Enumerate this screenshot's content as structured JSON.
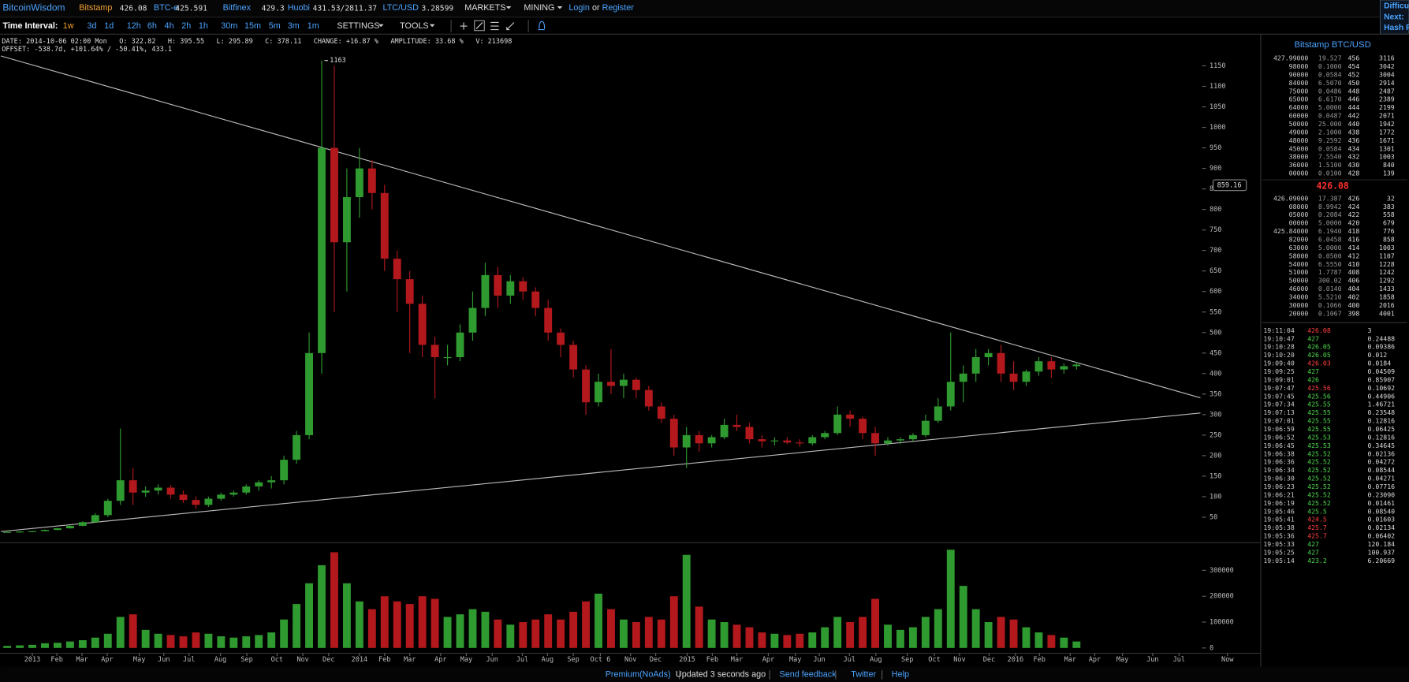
{
  "header": {
    "brand": "BitcoinWisdom",
    "tickers": [
      {
        "exchange": "Bitstamp",
        "price": "426.08"
      },
      {
        "exchange": "BTC-e",
        "price": "425.591"
      },
      {
        "exchange": "Bitfinex",
        "price": "429.3"
      },
      {
        "exchange": "Huobi",
        "price": "431.53/2811.37"
      },
      {
        "exchange": "LTC/USD",
        "price": "3.28599"
      }
    ],
    "menus": [
      "MARKETS",
      "MINING"
    ],
    "login": "Login",
    "or": "or",
    "register": "Register",
    "side_info": [
      "Difficu",
      "Next:",
      "Hash R"
    ]
  },
  "toolbar": {
    "label": "Time Interval:",
    "intervals": [
      "1w",
      "3d",
      "1d",
      "12h",
      "6h",
      "4h",
      "2h",
      "1h",
      "30m",
      "15m",
      "5m",
      "3m",
      "1m"
    ],
    "menus": [
      "SETTINGS",
      "TOOLS"
    ]
  },
  "info": {
    "line1": "DATE: 2014-10-06 02:00 Mon   O: 322.82   H: 395.55   L: 295.89   C: 378.11   CHANGE: +16.87 %   AMPLITUDE: 33.68 %   V: 213698",
    "line2": "OFFSET: -538.7d, +101.64% / -50.41%, 433.1"
  },
  "chart_data": {
    "type": "candlestick",
    "up_color": "#2f9a2f",
    "down_color": "#b3181c",
    "x": [
      -4,
      -2,
      0,
      2,
      4,
      6,
      8,
      10,
      12,
      14,
      16,
      18,
      20,
      22,
      24,
      26,
      28,
      30,
      32,
      34,
      36,
      38,
      40,
      42,
      44,
      46,
      48,
      50,
      52,
      54,
      56,
      58,
      60,
      62,
      64,
      66,
      68,
      70,
      72,
      74,
      76,
      78,
      80,
      82,
      84,
      86,
      88,
      90,
      92,
      94,
      96,
      98,
      100,
      102,
      104,
      106,
      108,
      110,
      112,
      114,
      116,
      118,
      120,
      122,
      124,
      126,
      128,
      130,
      132,
      134,
      136,
      138,
      140,
      142,
      144,
      146,
      148,
      150,
      152,
      154,
      156,
      158,
      160,
      162,
      164,
      166
    ],
    "open": [
      13,
      14,
      15,
      16,
      19,
      23,
      29,
      38,
      55,
      90,
      140,
      110,
      115,
      122,
      105,
      92,
      80,
      95,
      105,
      110,
      125,
      135,
      140,
      190,
      250,
      450,
      950,
      720,
      830,
      900,
      840,
      680,
      630,
      570,
      470,
      440,
      440,
      500,
      560,
      640,
      590,
      625,
      600,
      560,
      500,
      470,
      410,
      330,
      380,
      370,
      385,
      360,
      320,
      290,
      220,
      250,
      230,
      245,
      275,
      270,
      240,
      235,
      237,
      232,
      230,
      245,
      255,
      300,
      290,
      255,
      230,
      237,
      240,
      250,
      285,
      320,
      380,
      400,
      440,
      450,
      400,
      380,
      405,
      430,
      410,
      418
    ],
    "high": [
      14,
      16,
      17,
      20,
      24,
      30,
      40,
      60,
      95,
      266,
      170,
      125,
      130,
      128,
      115,
      100,
      100,
      110,
      115,
      130,
      140,
      150,
      200,
      260,
      500,
      1163,
      1150,
      900,
      950,
      920,
      860,
      700,
      650,
      590,
      490,
      470,
      520,
      600,
      670,
      660,
      640,
      635,
      610,
      580,
      510,
      480,
      420,
      400,
      460,
      400,
      390,
      370,
      330,
      300,
      270,
      260,
      250,
      290,
      300,
      280,
      250,
      245,
      245,
      240,
      250,
      260,
      320,
      310,
      295,
      270,
      245,
      245,
      255,
      300,
      340,
      500,
      420,
      460,
      460,
      470,
      430,
      410,
      440,
      440,
      425,
      428
    ],
    "low": [
      13,
      13,
      14,
      15,
      18,
      22,
      28,
      36,
      50,
      80,
      80,
      100,
      105,
      95,
      85,
      70,
      75,
      90,
      100,
      105,
      115,
      120,
      130,
      180,
      240,
      400,
      550,
      600,
      780,
      800,
      650,
      550,
      450,
      440,
      340,
      420,
      430,
      480,
      540,
      560,
      570,
      580,
      540,
      480,
      440,
      390,
      300,
      320,
      350,
      340,
      340,
      310,
      280,
      200,
      170,
      210,
      220,
      240,
      260,
      230,
      220,
      225,
      228,
      222,
      225,
      240,
      250,
      270,
      240,
      200,
      225,
      228,
      235,
      245,
      280,
      310,
      330,
      380,
      420,
      380,
      360,
      370,
      395,
      390,
      400,
      410
    ],
    "close": [
      14,
      15,
      16,
      19,
      23,
      29,
      38,
      55,
      90,
      140,
      110,
      115,
      122,
      105,
      92,
      80,
      95,
      105,
      110,
      125,
      135,
      140,
      190,
      250,
      450,
      950,
      720,
      830,
      900,
      840,
      680,
      630,
      570,
      470,
      440,
      440,
      500,
      560,
      640,
      590,
      625,
      600,
      560,
      500,
      470,
      410,
      330,
      380,
      370,
      385,
      360,
      320,
      290,
      220,
      250,
      230,
      245,
      275,
      270,
      240,
      235,
      237,
      232,
      230,
      245,
      255,
      300,
      290,
      255,
      230,
      237,
      240,
      250,
      285,
      320,
      380,
      400,
      440,
      450,
      400,
      380,
      405,
      430,
      410,
      418,
      422
    ],
    "volume": [
      8000,
      10000,
      12000,
      18000,
      20000,
      25000,
      30000,
      40000,
      55000,
      120000,
      130000,
      70000,
      55000,
      50000,
      45000,
      60000,
      55000,
      45000,
      40000,
      45000,
      50000,
      60000,
      110000,
      170000,
      250000,
      320000,
      370000,
      250000,
      180000,
      150000,
      200000,
      180000,
      170000,
      200000,
      190000,
      120000,
      130000,
      150000,
      140000,
      110000,
      90000,
      100000,
      110000,
      130000,
      110000,
      140000,
      180000,
      210000,
      150000,
      110000,
      100000,
      120000,
      110000,
      200000,
      360000,
      160000,
      110000,
      100000,
      90000,
      80000,
      60000,
      55000,
      50000,
      55000,
      60000,
      80000,
      120000,
      100000,
      120000,
      190000,
      90000,
      70000,
      80000,
      120000,
      150000,
      380000,
      240000,
      150000,
      100000,
      120000,
      110000,
      80000,
      60000,
      50000,
      40000,
      25000
    ],
    "xlim": [
      -5,
      195
    ],
    "xticks": [
      {
        "value": 0,
        "label": "2013"
      },
      {
        "value": 3.9,
        "label": "Feb"
      },
      {
        "value": 7.9,
        "label": "Mar"
      },
      {
        "value": 11.9,
        "label": "Apr"
      },
      {
        "value": 17,
        "label": "May"
      },
      {
        "value": 20.9,
        "label": "Jun"
      },
      {
        "value": 24.9,
        "label": "Jul"
      },
      {
        "value": 29.9,
        "label": "Aug"
      },
      {
        "value": 34.1,
        "label": "Sep"
      },
      {
        "value": 38.9,
        "label": "Oct"
      },
      {
        "value": 43,
        "label": "Nov"
      },
      {
        "value": 47.1,
        "label": "Dec"
      },
      {
        "value": 52,
        "label": "2014"
      },
      {
        "value": 56,
        "label": "Feb"
      },
      {
        "value": 60,
        "label": "Mar"
      },
      {
        "value": 64.9,
        "label": "Apr"
      },
      {
        "value": 69,
        "label": "May"
      },
      {
        "value": 73.1,
        "label": "Jun"
      },
      {
        "value": 77.9,
        "label": "Jul"
      },
      {
        "value": 81.9,
        "label": "Aug"
      },
      {
        "value": 86,
        "label": "Sep"
      },
      {
        "value": 90.3,
        "label": "Oct 6"
      },
      {
        "value": 95.1,
        "label": "Nov"
      },
      {
        "value": 99.1,
        "label": "Dec"
      },
      {
        "value": 104.1,
        "label": "2015"
      },
      {
        "value": 108.1,
        "label": "Feb"
      },
      {
        "value": 112,
        "label": "Mar"
      },
      {
        "value": 117,
        "label": "Apr"
      },
      {
        "value": 121.3,
        "label": "May"
      },
      {
        "value": 125.1,
        "label": "Jun"
      },
      {
        "value": 129.9,
        "label": "Jul"
      },
      {
        "value": 134.1,
        "label": "Aug"
      },
      {
        "value": 139.1,
        "label": "Sep"
      },
      {
        "value": 143.4,
        "label": "Oct"
      },
      {
        "value": 147.4,
        "label": "Nov"
      },
      {
        "value": 152.1,
        "label": "Dec"
      },
      {
        "value": 156.3,
        "label": "2016"
      },
      {
        "value": 160.1,
        "label": "Feb"
      },
      {
        "value": 165,
        "label": "Mar"
      },
      {
        "value": 168.9,
        "label": "Apr"
      },
      {
        "value": 173.3,
        "label": "May"
      },
      {
        "value": 178.1,
        "label": "Jun"
      },
      {
        "value": 182.3,
        "label": "Jul"
      },
      {
        "value": 190,
        "label": "Now"
      }
    ],
    "ylim": [
      -10,
      1225
    ],
    "yticks": [
      50,
      100,
      150,
      200,
      250,
      300,
      350,
      400,
      450,
      500,
      550,
      600,
      650,
      700,
      750,
      800,
      850,
      900,
      950,
      1000,
      1050,
      1100,
      1150
    ],
    "volume_ylim": [
      -17000,
      400000
    ],
    "volume_yticks": [
      0,
      100000,
      200000,
      300000
    ],
    "peak_label": 1163,
    "crosshair_price": 859.16,
    "trend_lines": [
      {
        "x": [
          -5,
          185.7
        ],
        "y": [
          1174,
          341
        ]
      },
      {
        "x": [
          -5,
          185.7
        ],
        "y": [
          15,
          304
        ]
      }
    ]
  },
  "order_book": {
    "title": "Bitstamp BTC/USD",
    "asks": [
      [
        "427.99000",
        "19.527",
        "456",
        "3116"
      ],
      [
        "98000",
        "0.1000",
        "454",
        "3042"
      ],
      [
        "90000",
        "0.0584",
        "452",
        "3004"
      ],
      [
        "84000",
        "6.5070",
        "450",
        "2914"
      ],
      [
        "75000",
        "0.0486",
        "448",
        "2487"
      ],
      [
        "65000",
        "6.6170",
        "446",
        "2389"
      ],
      [
        "64000",
        "5.0000",
        "444",
        "2199"
      ],
      [
        "60000",
        "0.0487",
        "442",
        "2071"
      ],
      [
        "50000",
        "25.000",
        "440",
        "1942"
      ],
      [
        "49000",
        "2.1000",
        "438",
        "1772"
      ],
      [
        "48000",
        "9.2592",
        "436",
        "1671"
      ],
      [
        "45000",
        "0.0584",
        "434",
        "1301"
      ],
      [
        "38000",
        "7.5540",
        "432",
        "1003"
      ],
      [
        "36000",
        "1.5100",
        "430",
        "840"
      ],
      [
        "00000",
        "0.0100",
        "428",
        "139"
      ]
    ],
    "last_price": "426.08",
    "bids": [
      [
        "426.09000",
        "17.387",
        "426",
        "32"
      ],
      [
        "08000",
        "8.9942",
        "424",
        "383"
      ],
      [
        "05000",
        "0.2084",
        "422",
        "558"
      ],
      [
        "00000",
        "5.0000",
        "420",
        "679"
      ],
      [
        "425.84000",
        "6.1940",
        "418",
        "776"
      ],
      [
        "82000",
        "6.0458",
        "416",
        "858"
      ],
      [
        "63000",
        "5.0000",
        "414",
        "1003"
      ],
      [
        "58000",
        "0.0500",
        "412",
        "1107"
      ],
      [
        "54000",
        "6.5550",
        "410",
        "1228"
      ],
      [
        "51000",
        "1.7787",
        "408",
        "1242"
      ],
      [
        "50000",
        "300.02",
        "406",
        "1292"
      ],
      [
        "46000",
        "0.0140",
        "404",
        "1433"
      ],
      [
        "34000",
        "5.5210",
        "402",
        "1858"
      ],
      [
        "30000",
        "0.1066",
        "400",
        "2016"
      ],
      [
        "20000",
        "0.1067",
        "398",
        "4001"
      ]
    ]
  },
  "trades": [
    {
      "time": "19:11:04",
      "price": "426.08",
      "amount": "3",
      "side": "sell"
    },
    {
      "time": "19:10:47",
      "price": "427",
      "amount": "0.24488",
      "side": "buy"
    },
    {
      "time": "19:10:28",
      "price": "426.05",
      "amount": "0.09386",
      "side": "buy"
    },
    {
      "time": "19:10:20",
      "price": "426.05",
      "amount": "0.012",
      "side": "buy"
    },
    {
      "time": "19:09:40",
      "price": "426.03",
      "amount": "0.0184",
      "side": "sell"
    },
    {
      "time": "19:09:25",
      "price": "427",
      "amount": "0.04509",
      "side": "buy"
    },
    {
      "time": "19:09:01",
      "price": "426",
      "amount": "0.85907",
      "side": "buy"
    },
    {
      "time": "19:07:47",
      "price": "425.56",
      "amount": "0.10692",
      "side": "sell"
    },
    {
      "time": "19:07:45",
      "price": "425.56",
      "amount": "0.44906",
      "side": "buy"
    },
    {
      "time": "19:07:34",
      "price": "425.55",
      "amount": "1.46721",
      "side": "buy"
    },
    {
      "time": "19:07:13",
      "price": "425.55",
      "amount": "0.23548",
      "side": "buy"
    },
    {
      "time": "19:07:01",
      "price": "425.55",
      "amount": "0.12816",
      "side": "buy"
    },
    {
      "time": "19:06:59",
      "price": "425.55",
      "amount": "0.06425",
      "side": "buy"
    },
    {
      "time": "19:06:52",
      "price": "425.53",
      "amount": "0.12816",
      "side": "buy"
    },
    {
      "time": "19:06:45",
      "price": "425.53",
      "amount": "0.34645",
      "side": "buy"
    },
    {
      "time": "19:06:38",
      "price": "425.52",
      "amount": "0.02136",
      "side": "buy"
    },
    {
      "time": "19:06:36",
      "price": "425.52",
      "amount": "0.04272",
      "side": "buy"
    },
    {
      "time": "19:06:34",
      "price": "425.52",
      "amount": "0.08544",
      "side": "buy"
    },
    {
      "time": "19:06:30",
      "price": "425.52",
      "amount": "0.04271",
      "side": "buy"
    },
    {
      "time": "19:06:23",
      "price": "425.52",
      "amount": "0.07716",
      "side": "buy"
    },
    {
      "time": "19:06:21",
      "price": "425.52",
      "amount": "0.23090",
      "side": "buy"
    },
    {
      "time": "19:06:19",
      "price": "425.52",
      "amount": "0.01461",
      "side": "buy"
    },
    {
      "time": "19:05:46",
      "price": "425.5",
      "amount": "0.08540",
      "side": "buy"
    },
    {
      "time": "19:05:41",
      "price": "424.5",
      "amount": "0.01603",
      "side": "sell"
    },
    {
      "time": "19:05:38",
      "price": "425.7",
      "amount": "0.02134",
      "side": "sell"
    },
    {
      "time": "19:05:36",
      "price": "425.7",
      "amount": "0.06402",
      "side": "sell"
    },
    {
      "time": "19:05:33",
      "price": "427",
      "amount": "120.184",
      "side": "buy"
    },
    {
      "time": "19:05:25",
      "price": "427",
      "amount": "100.937",
      "side": "buy"
    },
    {
      "time": "19:05:14",
      "price": "423.2",
      "amount": "6.20669",
      "side": "buy"
    }
  ],
  "footer": {
    "premium": "Premium(NoAds)",
    "updated": "Updated 3 seconds ago",
    "feedback": "Send feedback",
    "twitter": "Twitter",
    "help": "Help"
  }
}
